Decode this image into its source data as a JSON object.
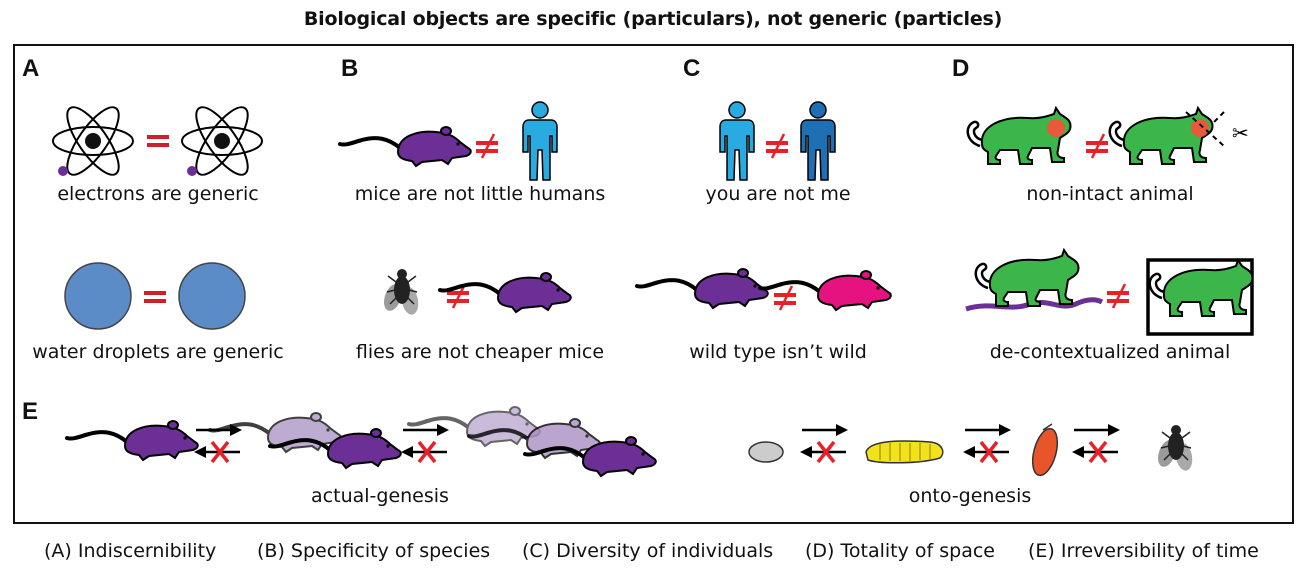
{
  "title": "Biological objects are specific (particulars), not generic (particles)",
  "panels": {
    "A": {
      "letter": "A",
      "caption1": "electrons are generic",
      "caption2": "water droplets are generic"
    },
    "B": {
      "letter": "B",
      "caption1": "mice are not little humans",
      "caption2": "flies are not cheaper mice"
    },
    "C": {
      "letter": "C",
      "caption1": "you are not me",
      "caption2": "wild type isn’t wild"
    },
    "D": {
      "letter": "D",
      "caption1": "non-intact animal",
      "caption2": "de-contextualized animal"
    },
    "E": {
      "letter": "E",
      "caption_left": "actual-genesis",
      "caption_right": "onto-genesis"
    }
  },
  "legend": [
    "(A) Indiscernibility",
    "(B) Specificity of species",
    "(C) Diversity of individuals",
    "(D) Totality of space",
    "(E) Irreversibility of time"
  ],
  "colors": {
    "mouse": "#6b2f96",
    "mouse_light": "#a98fc4",
    "mouse_pink": "#e5127f",
    "human_light": "#29abe2",
    "human_dark": "#1f6fb4",
    "cat": "#3cb54a",
    "droplet": "#5b8cc8",
    "neq_red": "#e8202a",
    "larva": "#f2e21a",
    "pupa": "#e8552a",
    "fly": "#222222",
    "egg": "#cccccc"
  }
}
